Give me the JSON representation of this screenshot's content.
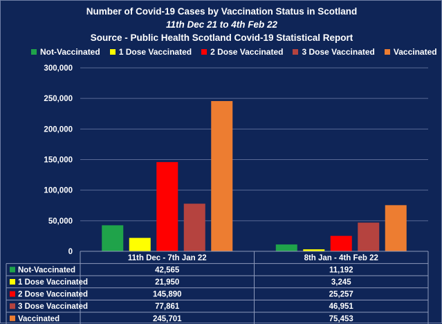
{
  "titles": {
    "line1": "Number of Covid-19 Cases by Vaccination Status in Scotland",
    "line2": "11th Dec 21 to 4th Feb 22",
    "line3": "Source - Public Health Scotland Covid-19 Statistical Report"
  },
  "colors": {
    "background": "#0f2557",
    "gridline": "#5a6a96",
    "Not-Vaccinated": "#1fa34a",
    "1 Dose Vaccinated": "#ffff00",
    "2 Dose Vaccinated": "#ff0000",
    "3 Dose Vaccinated": "#b5433f",
    "Vaccinated": "#ed7d31"
  },
  "chart_data": {
    "type": "bar",
    "categories": [
      "11th Dec - 7th Jan 22",
      "8th Jan - 4th Feb 22"
    ],
    "series": [
      {
        "name": "Not-Vaccinated",
        "values": [
          42565,
          11192
        ],
        "labels": [
          "42,565",
          "11,192"
        ]
      },
      {
        "name": "1 Dose Vaccinated",
        "values": [
          21950,
          3245
        ],
        "labels": [
          "21,950",
          "3,245"
        ]
      },
      {
        "name": "2 Dose Vaccinated",
        "values": [
          145890,
          25257
        ],
        "labels": [
          "145,890",
          "25,257"
        ]
      },
      {
        "name": "3 Dose Vaccinated",
        "values": [
          77861,
          46951
        ],
        "labels": [
          "77,861",
          "46,951"
        ]
      },
      {
        "name": "Vaccinated",
        "values": [
          245701,
          75453
        ],
        "labels": [
          "245,701",
          "75,453"
        ]
      }
    ],
    "y_ticks": [
      "0",
      "50,000",
      "100,000",
      "150,000",
      "200,000",
      "250,000",
      "300,000"
    ],
    "ylim": [
      0,
      300000
    ],
    "legend_position": "top",
    "grid": true,
    "data_table": true
  }
}
